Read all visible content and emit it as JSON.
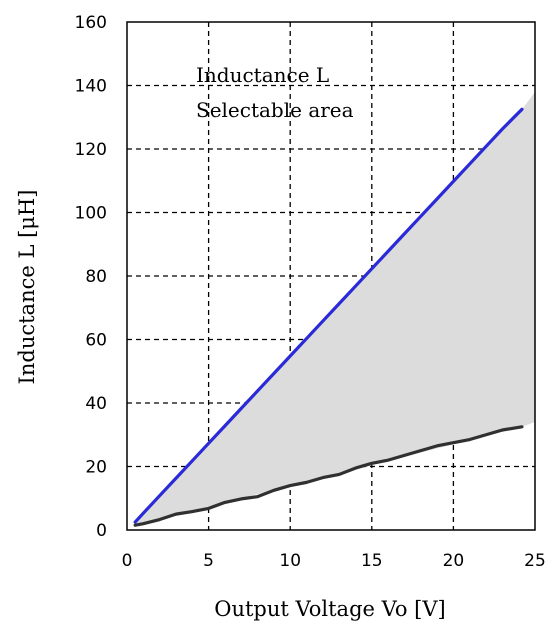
{
  "chart_data": {
    "type": "area",
    "title": "",
    "xlabel": "Output Voltage Vo [V]",
    "ylabel": "Inductance L [μH]",
    "xlim": [
      0,
      25
    ],
    "ylim": [
      0,
      160
    ],
    "xticks": [
      0,
      5,
      10,
      15,
      20,
      25
    ],
    "yticks": [
      0,
      20,
      40,
      60,
      80,
      100,
      120,
      140,
      160
    ],
    "xtick_labels": [
      "0",
      "5",
      "10",
      "15",
      "20",
      "25"
    ],
    "ytick_labels": [
      "0",
      "20",
      "40",
      "60",
      "80",
      "100",
      "120",
      "140",
      "160"
    ],
    "grid": true,
    "annotation": [
      "Inductance L",
      "Selectable area"
    ],
    "shaded_region": {
      "label": "Inductance L Selectable area",
      "color": "#dcdcdc",
      "upper": {
        "x": [
          0.5,
          24.2,
          25.0
        ],
        "y": [
          2.5,
          132.5,
          138.0
        ]
      },
      "lower": {
        "x": [
          0.5,
          24.2,
          25.0
        ],
        "y": [
          1.5,
          32.5,
          34.0
        ]
      }
    },
    "series": [
      {
        "color": "#2a2ad8",
        "x": [
          0.5,
          1,
          2,
          3,
          4,
          5,
          6,
          7,
          8,
          9,
          10,
          11,
          12,
          13,
          14,
          15,
          16,
          17,
          18,
          19,
          20,
          21,
          22,
          23,
          24.2
        ],
        "y": [
          2.5,
          5.3,
          10.8,
          16.3,
          21.8,
          27.3,
          32.8,
          38.3,
          43.8,
          49.3,
          54.8,
          60.3,
          65.8,
          71.3,
          76.8,
          82.3,
          87.8,
          93.3,
          98.8,
          104.3,
          109.8,
          115.3,
          120.8,
          126.3,
          132.5
        ]
      },
      {
        "color": "#303030",
        "x": [
          0.5,
          1,
          2,
          3,
          4,
          5,
          6,
          7,
          8,
          9,
          10,
          11,
          12,
          13,
          14,
          15,
          16,
          17,
          18,
          19,
          20,
          21,
          22,
          23,
          24.2
        ],
        "y": [
          1.5,
          2.0,
          3.3,
          5.0,
          5.8,
          6.8,
          8.7,
          9.8,
          10.5,
          12.5,
          14.0,
          15.0,
          16.5,
          17.5,
          19.5,
          21.0,
          22.0,
          23.5,
          25.0,
          26.5,
          27.5,
          28.5,
          30.0,
          31.5,
          32.5
        ]
      }
    ]
  }
}
